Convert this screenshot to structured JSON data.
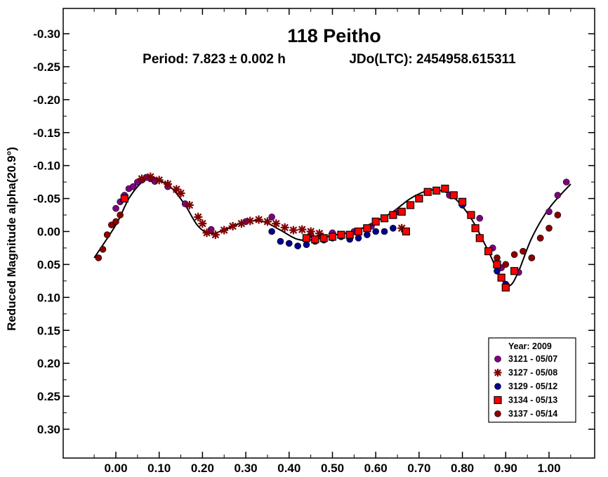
{
  "chart_data": {
    "type": "scatter",
    "title": "118 Peitho",
    "subtitle_left": "Period: 7.823 ± 0.002 h",
    "subtitle_right": "JDo(LTC): 2454958.615311",
    "xlabel": "",
    "ylabel": "Reduced Magnitude alpha(20.9°)",
    "xlim": [
      -0.12,
      1.12
    ],
    "ylim": [
      -0.35,
      0.34
    ],
    "y_inverted": true,
    "grid": false,
    "x_ticks": [
      0.0,
      0.1,
      0.2,
      0.3,
      0.4,
      0.5,
      0.6,
      0.7,
      0.8,
      0.9,
      1.0
    ],
    "x_tick_labels": [
      "0.00",
      "0.10",
      "0.20",
      "0.30",
      "0.40",
      "0.50",
      "0.60",
      "0.70",
      "0.80",
      "0.90",
      "1.00"
    ],
    "y_ticks": [
      -0.3,
      -0.25,
      -0.2,
      -0.15,
      -0.1,
      -0.05,
      0.0,
      0.05,
      0.1,
      0.15,
      0.2,
      0.25,
      0.3
    ],
    "y_tick_labels": [
      "-0.30",
      "-0.25",
      "-0.20",
      "-0.15",
      "-0.10",
      "-0.05",
      "0.00",
      "0.05",
      "0.10",
      "0.15",
      "0.20",
      "0.25",
      "0.30"
    ],
    "legend": {
      "title": "Year: 2009",
      "placement": "bottom-right"
    },
    "fit_curve": {
      "x": [
        -0.05,
        0.0,
        0.03,
        0.06,
        0.08,
        0.1,
        0.13,
        0.16,
        0.19,
        0.22,
        0.26,
        0.3,
        0.34,
        0.38,
        0.42,
        0.46,
        0.5,
        0.55,
        0.6,
        0.64,
        0.68,
        0.72,
        0.75,
        0.78,
        0.82,
        0.86,
        0.89,
        0.91,
        0.93,
        0.96,
        1.0,
        1.05
      ],
      "y": [
        0.04,
        -0.01,
        -0.05,
        -0.075,
        -0.082,
        -0.078,
        -0.065,
        -0.04,
        -0.008,
        0.003,
        -0.005,
        -0.015,
        -0.015,
        -0.002,
        0.012,
        0.012,
        0.006,
        0.0,
        -0.015,
        -0.03,
        -0.05,
        -0.062,
        -0.062,
        -0.052,
        -0.02,
        0.03,
        0.072,
        0.082,
        0.06,
        0.01,
        -0.035,
        -0.072
      ]
    },
    "series": [
      {
        "name": "3121 - 05/07",
        "marker": "circle",
        "color": "#800080",
        "x": [
          0.0,
          0.01,
          0.02,
          0.03,
          0.04,
          0.05,
          0.06,
          0.07,
          0.08,
          0.09,
          0.12,
          0.16,
          0.22,
          0.3,
          0.36,
          0.45,
          0.5,
          0.55,
          0.59,
          0.62,
          0.65,
          0.7,
          0.74,
          0.77,
          0.8,
          0.84,
          0.87,
          0.89,
          0.93,
          0.96,
          0.98,
          1.0,
          1.02,
          1.04
        ],
        "y": [
          -0.035,
          -0.045,
          -0.055,
          -0.065,
          -0.068,
          -0.075,
          -0.078,
          -0.082,
          -0.08,
          -0.076,
          -0.068,
          -0.042,
          -0.003,
          -0.015,
          -0.022,
          0.005,
          0.002,
          0.0,
          -0.008,
          -0.02,
          -0.03,
          -0.05,
          -0.063,
          -0.055,
          -0.045,
          -0.02,
          0.025,
          0.055,
          0.062,
          0.04,
          0.01,
          -0.03,
          -0.055,
          -0.075
        ]
      },
      {
        "name": "3127 - 05/08",
        "marker": "asterisk",
        "color": "#800000",
        "x": [
          0.06,
          0.08,
          0.1,
          0.12,
          0.14,
          0.15,
          0.17,
          0.19,
          0.2,
          0.21,
          0.23,
          0.25,
          0.27,
          0.29,
          0.31,
          0.33,
          0.35,
          0.37,
          0.39,
          0.41,
          0.43,
          0.45,
          0.47,
          0.66
        ],
        "y": [
          -0.08,
          -0.083,
          -0.078,
          -0.072,
          -0.064,
          -0.058,
          -0.04,
          -0.022,
          -0.012,
          0.002,
          0.005,
          -0.002,
          -0.008,
          -0.012,
          -0.016,
          -0.018,
          -0.015,
          -0.012,
          -0.006,
          -0.002,
          -0.003,
          0.0,
          0.003,
          -0.005
        ]
      },
      {
        "name": "3129 - 05/12",
        "marker": "circle",
        "color": "#00008B",
        "x": [
          0.36,
          0.38,
          0.4,
          0.42,
          0.44,
          0.46,
          0.48,
          0.5,
          0.52,
          0.54,
          0.56,
          0.58,
          0.6,
          0.62,
          0.64,
          0.78,
          0.8,
          0.82,
          0.86,
          0.88,
          0.9
        ],
        "y": [
          0.0,
          0.015,
          0.018,
          0.022,
          0.02,
          0.015,
          0.013,
          0.01,
          0.008,
          0.012,
          0.01,
          0.005,
          0.0,
          0.0,
          -0.005,
          -0.055,
          -0.04,
          -0.025,
          0.03,
          0.06,
          0.08
        ]
      },
      {
        "name": "3134 - 05/13",
        "marker": "square",
        "color": "#FF0000",
        "x": [
          0.02,
          0.44,
          0.46,
          0.48,
          0.5,
          0.52,
          0.54,
          0.56,
          0.58,
          0.6,
          0.62,
          0.64,
          0.66,
          0.67,
          0.68,
          0.7,
          0.72,
          0.74,
          0.76,
          0.78,
          0.8,
          0.82,
          0.83,
          0.84,
          0.86,
          0.88,
          0.89,
          0.9,
          0.92
        ],
        "y": [
          -0.05,
          0.01,
          0.012,
          0.01,
          0.008,
          0.005,
          0.005,
          0.0,
          -0.005,
          -0.015,
          -0.02,
          -0.025,
          -0.03,
          0.0,
          -0.04,
          -0.05,
          -0.06,
          -0.062,
          -0.065,
          -0.055,
          -0.045,
          -0.025,
          -0.005,
          0.01,
          0.03,
          0.05,
          0.07,
          0.085,
          0.06
        ]
      },
      {
        "name": "3137 - 05/14",
        "marker": "circle",
        "color": "#8B0000",
        "x": [
          -0.04,
          -0.03,
          -0.02,
          -0.01,
          0.0,
          0.01,
          0.88,
          0.9,
          0.92,
          0.94,
          0.96,
          0.98,
          1.0,
          1.02
        ],
        "y": [
          0.04,
          0.027,
          0.005,
          -0.01,
          -0.015,
          -0.025,
          0.04,
          0.05,
          0.035,
          0.03,
          0.04,
          0.01,
          -0.005,
          -0.025
        ]
      }
    ]
  }
}
